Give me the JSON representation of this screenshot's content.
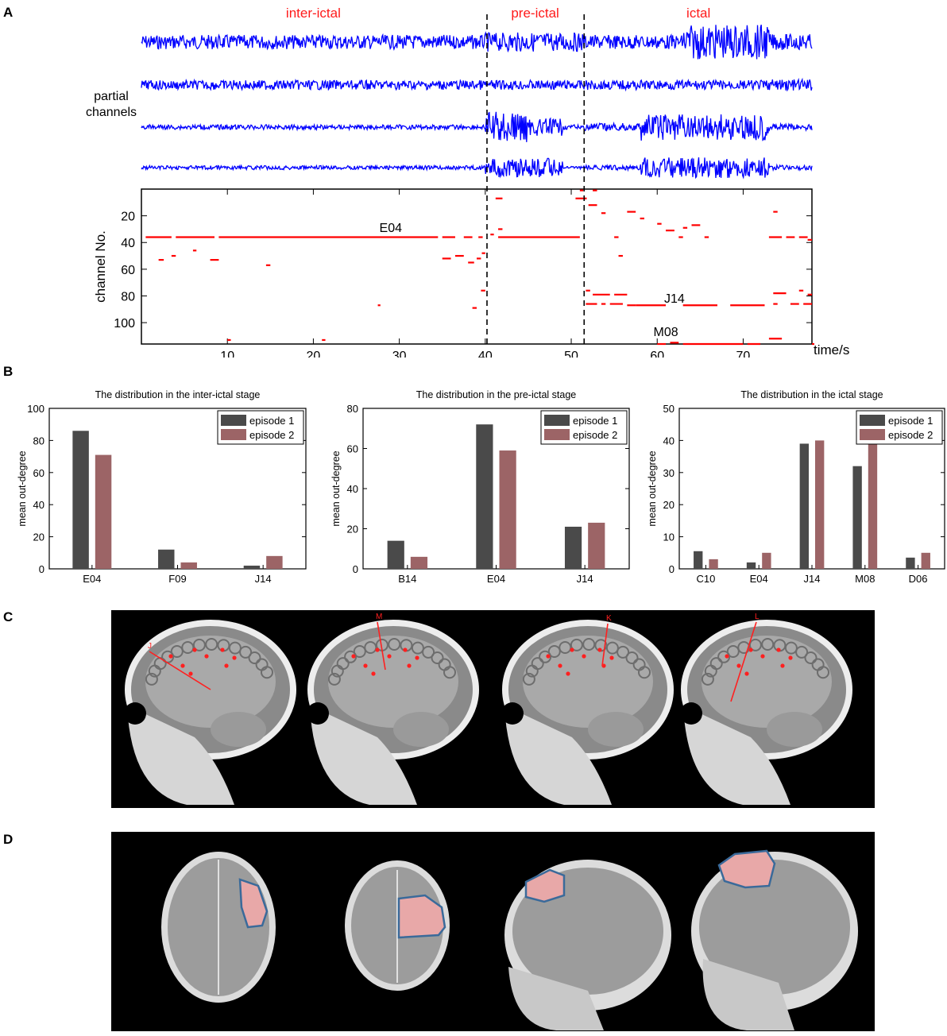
{
  "panels": {
    "a": "A",
    "b": "B",
    "c": "C",
    "d": "D"
  },
  "panel_a": {
    "stage_labels": [
      "inter-ictal",
      "pre-ictal",
      "ictal"
    ],
    "stage_color": "#ff1a1a",
    "trace_label_line1": "partial",
    "trace_label_line2": "channels",
    "trace_color": "#0000ff",
    "trace_count": 4
  },
  "chart_data": [
    {
      "type": "scatter",
      "ylabel": "channel No.",
      "xlabel": "time/s",
      "xticks": [
        10,
        20,
        30,
        40,
        50,
        60,
        70
      ],
      "yticks": [
        20,
        40,
        60,
        80,
        100
      ],
      "xlim": [
        0,
        78
      ],
      "ylim": [
        116,
        0
      ],
      "y_reversed": true,
      "grid": false,
      "stage_boundaries_s": [
        40.2,
        51.5
      ],
      "mark_color": "#ff0000",
      "annotations": [
        {
          "text": "E04",
          "x": 29,
          "y": 32
        },
        {
          "text": "J14",
          "x": 62,
          "y": 85
        },
        {
          "text": "M08",
          "x": 61,
          "y": 110
        }
      ],
      "segments": [
        {
          "t0": 0.5,
          "t1": 3.5,
          "ch": 36
        },
        {
          "t0": 4,
          "t1": 8.5,
          "ch": 36
        },
        {
          "t0": 9,
          "t1": 34.5,
          "ch": 36
        },
        {
          "t0": 35,
          "t1": 36.5,
          "ch": 36
        },
        {
          "t0": 37.5,
          "t1": 38.5,
          "ch": 36
        },
        {
          "t0": 39.2,
          "t1": 39.7,
          "ch": 36
        },
        {
          "t0": 41.5,
          "t1": 51,
          "ch": 36
        },
        {
          "t0": 2,
          "t1": 2.6,
          "ch": 53
        },
        {
          "t0": 3.5,
          "t1": 4,
          "ch": 50
        },
        {
          "t0": 6,
          "t1": 6.4,
          "ch": 46
        },
        {
          "t0": 8,
          "t1": 9,
          "ch": 53
        },
        {
          "t0": 14.5,
          "t1": 15,
          "ch": 57
        },
        {
          "t0": 27.5,
          "t1": 27.8,
          "ch": 87
        },
        {
          "t0": 10,
          "t1": 10.4,
          "ch": 113
        },
        {
          "t0": 21,
          "t1": 21.4,
          "ch": 113
        },
        {
          "t0": 35,
          "t1": 36,
          "ch": 52
        },
        {
          "t0": 36.5,
          "t1": 37.5,
          "ch": 50
        },
        {
          "t0": 38,
          "t1": 38.7,
          "ch": 55
        },
        {
          "t0": 39,
          "t1": 39.5,
          "ch": 52
        },
        {
          "t0": 39.6,
          "t1": 40,
          "ch": 48
        },
        {
          "t0": 38.5,
          "t1": 39,
          "ch": 89
        },
        {
          "t0": 39.5,
          "t1": 40,
          "ch": 76
        },
        {
          "t0": 41.2,
          "t1": 42,
          "ch": 7
        },
        {
          "t0": 41.5,
          "t1": 42,
          "ch": 30
        },
        {
          "t0": 40.6,
          "t1": 41,
          "ch": 34
        },
        {
          "t0": 50.5,
          "t1": 51.8,
          "ch": 7
        },
        {
          "t0": 51,
          "t1": 51.4,
          "ch": 1
        },
        {
          "t0": 52.5,
          "t1": 53,
          "ch": 1
        },
        {
          "t0": 52,
          "t1": 53,
          "ch": 12
        },
        {
          "t0": 53.5,
          "t1": 54,
          "ch": 18
        },
        {
          "t0": 55,
          "t1": 55.5,
          "ch": 36
        },
        {
          "t0": 56.5,
          "t1": 57.5,
          "ch": 17
        },
        {
          "t0": 58,
          "t1": 58.5,
          "ch": 22
        },
        {
          "t0": 60,
          "t1": 60.5,
          "ch": 26
        },
        {
          "t0": 61,
          "t1": 62,
          "ch": 31
        },
        {
          "t0": 63,
          "t1": 63.5,
          "ch": 29
        },
        {
          "t0": 64,
          "t1": 65,
          "ch": 27
        },
        {
          "t0": 62.5,
          "t1": 63,
          "ch": 36
        },
        {
          "t0": 65.5,
          "t1": 66,
          "ch": 36
        },
        {
          "t0": 55.5,
          "t1": 56,
          "ch": 50
        },
        {
          "t0": 51.7,
          "t1": 52.2,
          "ch": 76
        },
        {
          "t0": 52.5,
          "t1": 54.5,
          "ch": 79
        },
        {
          "t0": 55,
          "t1": 56.5,
          "ch": 79
        },
        {
          "t0": 51.7,
          "t1": 53,
          "ch": 86
        },
        {
          "t0": 53.5,
          "t1": 54,
          "ch": 86
        },
        {
          "t0": 54.5,
          "t1": 56,
          "ch": 86
        },
        {
          "t0": 56.5,
          "t1": 57.5,
          "ch": 87
        },
        {
          "t0": 57.5,
          "t1": 61,
          "ch": 87
        },
        {
          "t0": 63,
          "t1": 67,
          "ch": 87
        },
        {
          "t0": 68.5,
          "t1": 72.5,
          "ch": 87
        },
        {
          "t0": 73.5,
          "t1": 74,
          "ch": 86
        },
        {
          "t0": 75.5,
          "t1": 76.5,
          "ch": 86
        },
        {
          "t0": 77,
          "t1": 78,
          "ch": 86
        },
        {
          "t0": 73.5,
          "t1": 75,
          "ch": 78
        },
        {
          "t0": 76.5,
          "t1": 77,
          "ch": 76
        },
        {
          "t0": 77.5,
          "t1": 78,
          "ch": 79
        },
        {
          "t0": 73,
          "t1": 74.5,
          "ch": 36
        },
        {
          "t0": 75,
          "t1": 76,
          "ch": 36
        },
        {
          "t0": 76.5,
          "t1": 77.5,
          "ch": 36
        },
        {
          "t0": 77.5,
          "t1": 78,
          "ch": 38
        },
        {
          "t0": 73.5,
          "t1": 74,
          "ch": 17
        },
        {
          "t0": 60,
          "t1": 61,
          "ch": 116
        },
        {
          "t0": 61.5,
          "t1": 62.5,
          "ch": 115
        },
        {
          "t0": 63,
          "t1": 70,
          "ch": 116
        },
        {
          "t0": 70.5,
          "t1": 72,
          "ch": 116
        },
        {
          "t0": 73,
          "t1": 74.5,
          "ch": 112
        },
        {
          "t0": 78,
          "t1": 78,
          "ch": 116
        }
      ]
    },
    {
      "type": "bar",
      "title": "The distribution in the inter-ictal stage",
      "ylabel": "mean out-degree",
      "categories": [
        "E04",
        "F09",
        "J14"
      ],
      "ylim": [
        0,
        100
      ],
      "yticks": [
        0,
        20,
        40,
        60,
        80,
        100
      ],
      "legend_position": "top-right",
      "series": [
        {
          "name": "episode 1",
          "color": "#4a4a4a",
          "values": [
            86,
            12,
            2
          ]
        },
        {
          "name": "episode 2",
          "color": "#9c6466",
          "values": [
            71,
            4,
            8
          ]
        }
      ]
    },
    {
      "type": "bar",
      "title": "The distribution in the pre-ictal stage",
      "ylabel": "mean out-degree",
      "categories": [
        "B14",
        "E04",
        "J14"
      ],
      "ylim": [
        0,
        80
      ],
      "yticks": [
        0,
        20,
        40,
        60,
        80
      ],
      "legend_position": "top-right",
      "series": [
        {
          "name": "episode 1",
          "color": "#4a4a4a",
          "values": [
            14,
            72,
            21
          ]
        },
        {
          "name": "episode 2",
          "color": "#9c6466",
          "values": [
            6,
            59,
            23
          ]
        }
      ]
    },
    {
      "type": "bar",
      "title": "The distribution in the ictal stage",
      "ylabel": "mean out-degree",
      "categories": [
        "C10",
        "E04",
        "J14",
        "M08",
        "D06"
      ],
      "ylim": [
        0,
        50
      ],
      "yticks": [
        0,
        10,
        20,
        30,
        40,
        50
      ],
      "legend_position": "top-right",
      "series": [
        {
          "name": "episode 1",
          "color": "#4a4a4a",
          "values": [
            5.5,
            2,
            39,
            32,
            3.5
          ]
        },
        {
          "name": "episode 2",
          "color": "#9c6466",
          "values": [
            3,
            5,
            40,
            40,
            5
          ]
        }
      ]
    }
  ],
  "panel_c": {
    "electrode_labels": [
      "J",
      "M",
      "K",
      "L"
    ],
    "marker_color": "#ff2020"
  },
  "panel_d": {
    "region_fill": "#e8a8a8",
    "region_stroke": "#3a6a9a"
  }
}
